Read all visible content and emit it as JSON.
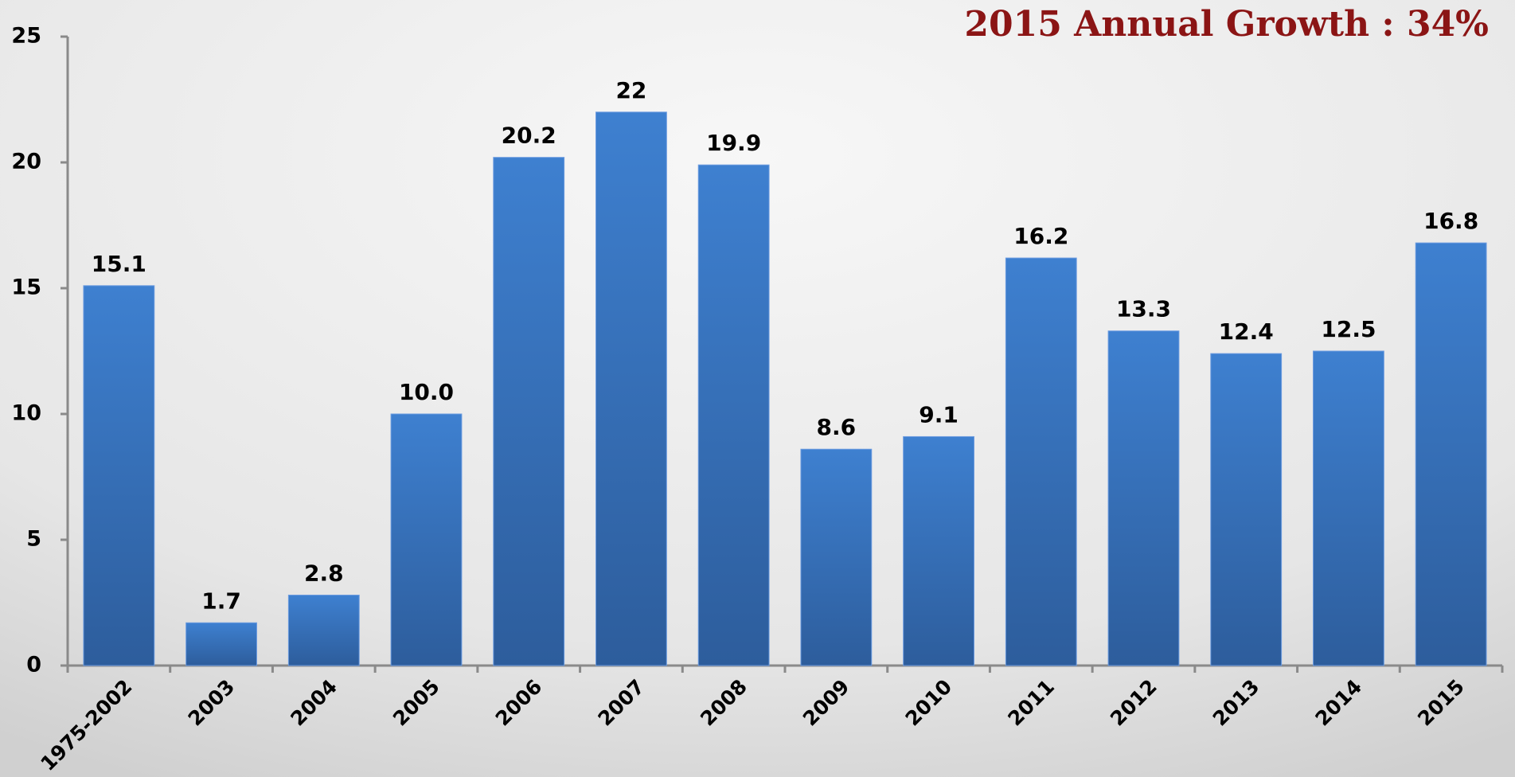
{
  "chart_data": {
    "type": "bar",
    "title": "2015 Annual Growth : 34%",
    "categories": [
      "1975-2002",
      "2003",
      "2004",
      "2005",
      "2006",
      "2007",
      "2008",
      "2009",
      "2010",
      "2011",
      "2012",
      "2013",
      "2014",
      "2015"
    ],
    "values": [
      15.1,
      1.7,
      2.8,
      10.0,
      20.2,
      22,
      19.9,
      8.6,
      9.1,
      16.2,
      13.3,
      12.4,
      12.5,
      16.8
    ],
    "value_labels": [
      "15.1",
      "1.7",
      "2.8",
      "10.0",
      "20.2",
      "22",
      "19.9",
      "8.6",
      "9.1",
      "16.2",
      "13.3",
      "12.4",
      "12.5",
      "16.8"
    ],
    "color": "#3a78c8",
    "ylim": [
      0,
      25
    ],
    "yticks": [
      0,
      5,
      10,
      15,
      20,
      25
    ],
    "grid": false
  }
}
